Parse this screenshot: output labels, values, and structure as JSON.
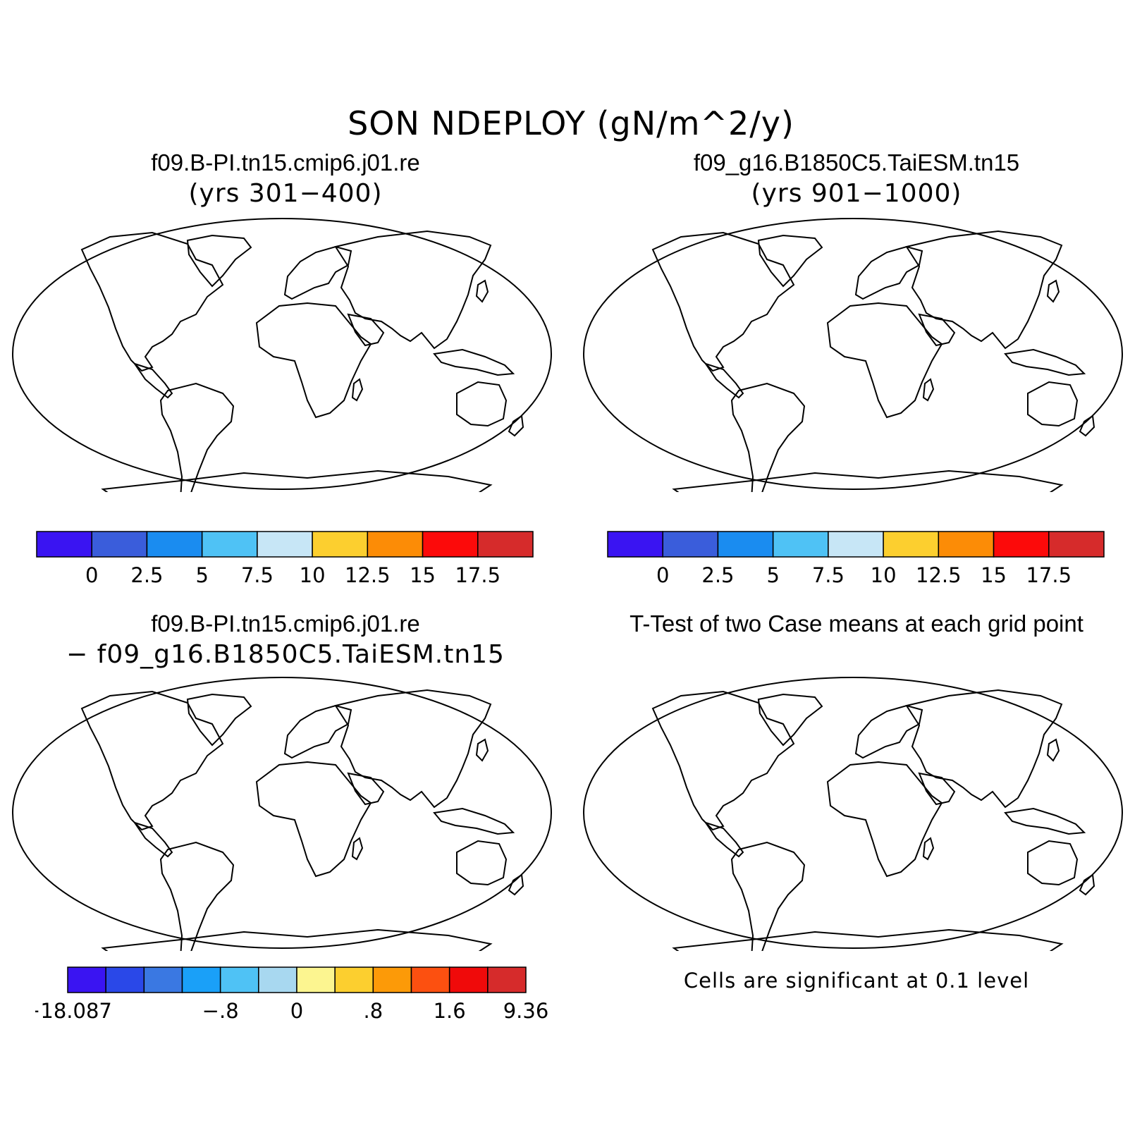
{
  "title": "SON NDEPLOY (gN/m^2/y)",
  "panels": [
    {
      "id": "case1",
      "title": "f09.B-PI.tn15.cmip6.j01.re",
      "subtitle": "(yrs 301−400)"
    },
    {
      "id": "case2",
      "title": "f09_g16.B1850C5.TaiESM.tn15",
      "subtitle": "(yrs 901−1000)"
    },
    {
      "id": "diff",
      "title": "f09.B-PI.tn15.cmip6.j01.re",
      "subtitle": "− f09_g16.B1850C5.TaiESM.tn15"
    },
    {
      "id": "ttest",
      "title": "T-Test of two Case means at each grid point",
      "note": "Cells are significant at 0.1 level"
    }
  ],
  "colorbars": {
    "main": {
      "colors": [
        "#3a14f2",
        "#3a5ddb",
        "#1a8cf0",
        "#4fc2f5",
        "#c7e6f6",
        "#fccf2f",
        "#fc8c06",
        "#fc0a0a",
        "#d62b2b"
      ],
      "labels": [
        "0",
        "2.5",
        "5",
        "7.5",
        "10",
        "12.5",
        "15",
        "17.5"
      ]
    },
    "diff": {
      "colors": [
        "#3a14f2",
        "#2a48e8",
        "#3a78e2",
        "#1aa0f8",
        "#4fc2f5",
        "#a8d8f0",
        "#fcf590",
        "#fccf2f",
        "#fc9a08",
        "#fc5010",
        "#f00a0a",
        "#d62b2b"
      ],
      "labels": [
        "−18.087",
        "−.8",
        "0",
        ".8",
        "1.6",
        "9.36"
      ],
      "label_boundaries": [
        0,
        4,
        6,
        8,
        10,
        12
      ]
    }
  }
}
